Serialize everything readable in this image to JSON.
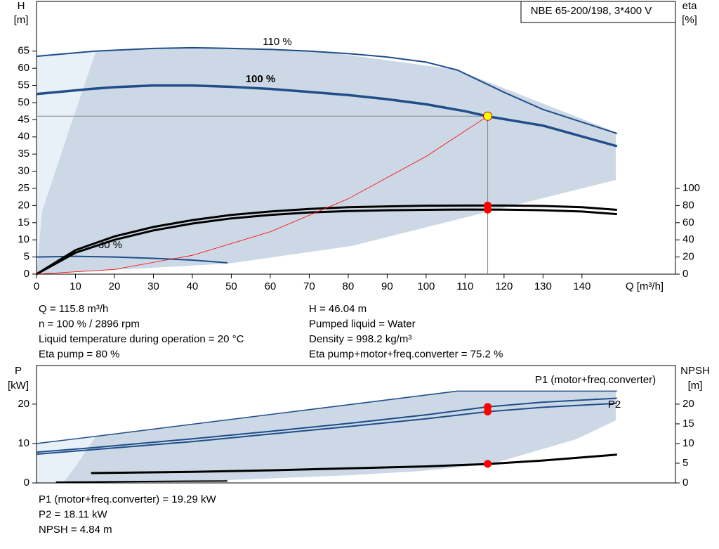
{
  "chart_data": [
    {
      "type": "line",
      "title": "NBE 65-200/198, 3*400 V",
      "y_label": "H",
      "y_unit": "[m]",
      "y2_label": "eta",
      "y2_unit": "[%]",
      "x_label": "Q [m³/h]",
      "xlim": [
        0,
        164
      ],
      "xticks": [
        0,
        10,
        20,
        30,
        40,
        50,
        60,
        70,
        80,
        90,
        100,
        110,
        120,
        130,
        140
      ],
      "ylim": [
        0,
        79.5
      ],
      "yticks": [
        0,
        5,
        10,
        15,
        20,
        25,
        30,
        35,
        40,
        45,
        50,
        55,
        60,
        65
      ],
      "y2lim": [
        0,
        318
      ],
      "y2ticks": [
        0,
        20,
        40,
        60,
        80,
        100
      ],
      "grid": false,
      "series": [
        {
          "name": "110 %",
          "color": "#1f4e89",
          "x": [
            0,
            15,
            30,
            40,
            50,
            60,
            70,
            80,
            90,
            100,
            108,
            120,
            130,
            149
          ],
          "values": [
            63.5,
            65,
            65.8,
            66,
            65.8,
            65.5,
            65,
            64.3,
            63.3,
            61.8,
            59.5,
            53,
            48,
            41
          ]
        },
        {
          "name": "100 %",
          "color": "#1f4e89",
          "x": [
            0,
            14,
            20,
            30,
            40,
            50,
            60,
            70,
            80,
            90,
            100,
            110,
            115.8,
            130,
            149
          ],
          "values": [
            52.5,
            54,
            54.5,
            55,
            55,
            54.6,
            54,
            53.1,
            52.2,
            51,
            49.5,
            47.5,
            46,
            43.3,
            37.3
          ]
        },
        {
          "name": "30 %",
          "color": "#1f4e89",
          "x": [
            0,
            10,
            20,
            30,
            40,
            49
          ],
          "values": [
            5,
            5.2,
            5,
            4.6,
            4.1,
            3.3
          ]
        },
        {
          "color": "#000000",
          "axis": "y2",
          "x": [
            0,
            10,
            20,
            30,
            40,
            50,
            60,
            70,
            80,
            90,
            100,
            110,
            120,
            130,
            140,
            149
          ],
          "values": [
            0,
            28,
            44,
            55,
            63,
            69,
            73,
            76,
            78,
            79,
            79.8,
            80,
            80,
            79.5,
            78,
            75
          ]
        },
        {
          "color": "#000000",
          "axis": "y2",
          "x": [
            0,
            10,
            20,
            30,
            40,
            50,
            60,
            70,
            80,
            90,
            100,
            110,
            120,
            130,
            140,
            149
          ],
          "values": [
            0,
            25,
            40,
            51,
            59,
            65,
            69,
            72,
            73.5,
            74.5,
            75,
            75.3,
            75.2,
            74.5,
            73,
            70
          ]
        },
        {
          "color": "#ff0000",
          "x": [
            0,
            20,
            40,
            60,
            80,
            100,
            115.8
          ],
          "values": [
            0,
            1.37,
            5.49,
            12.36,
            21.97,
            34.33,
            46.04
          ]
        }
      ],
      "operating_point": {
        "x": 115.8,
        "y": 46.04,
        "y2": [
          80,
          75.2
        ]
      }
    },
    {
      "type": "line",
      "y_label": "P",
      "y_unit": "[kW]",
      "y2_label": "NPSH",
      "y2_unit": "[m]",
      "xlim": [
        0,
        164
      ],
      "ylim": [
        0,
        29.8
      ],
      "yticks": [
        0,
        10,
        20
      ],
      "y2lim": [
        0,
        29.8
      ],
      "y2ticks": [
        0,
        5,
        10,
        15,
        20
      ],
      "grid": false,
      "series": [
        {
          "name": "P1 (motor+freq.converter)",
          "color": "#1f4e89",
          "x": [
            0,
            14,
            40,
            60,
            80,
            100,
            115.8,
            130,
            149
          ],
          "values": [
            7.8,
            8.9,
            11.2,
            13.1,
            15.1,
            17.3,
            19.3,
            20.5,
            21.5
          ]
        },
        {
          "name": "P2",
          "color": "#1f4e89",
          "x": [
            0,
            14,
            40,
            60,
            80,
            100,
            115.8,
            130,
            149
          ],
          "values": [
            7.3,
            8.4,
            10.5,
            12.4,
            14.3,
            16.3,
            18.1,
            19.2,
            20.2
          ]
        },
        {
          "color": "#1f4e89",
          "x": [
            0,
            15,
            108,
            149
          ],
          "values": [
            10,
            11.8,
            23.3,
            23.3
          ]
        },
        {
          "color": "#000000",
          "axis": "y2",
          "x": [
            14,
            40,
            60,
            80,
            100,
            115.8,
            130,
            149
          ],
          "values": [
            2.5,
            2.8,
            3.2,
            3.7,
            4.2,
            4.8,
            5.7,
            7.2
          ]
        },
        {
          "color": "#000000",
          "x": [
            5,
            49
          ],
          "values": [
            0.2,
            0.5
          ]
        }
      ],
      "operating_point": {
        "x": 115.8,
        "y": [
          19.29,
          18.11
        ],
        "y2": 4.84
      }
    }
  ],
  "info_top_left": [
    "Q = 115.8 m³/h",
    "n = 100 % / 2896 rpm",
    "Liquid temperature during operation = 20 °C",
    "Eta pump = 80 %"
  ],
  "info_top_right": [
    "H = 46.04 m",
    "Pumped liquid = Water",
    "Density = 998.2 kg/m³",
    "Eta pump+motor+freq.converter = 75.2 %"
  ],
  "info_bottom": [
    "P1 (motor+freq.converter) = 19.29 kW",
    "P2 = 18.11 kW",
    "NPSH = 4.84 m"
  ]
}
